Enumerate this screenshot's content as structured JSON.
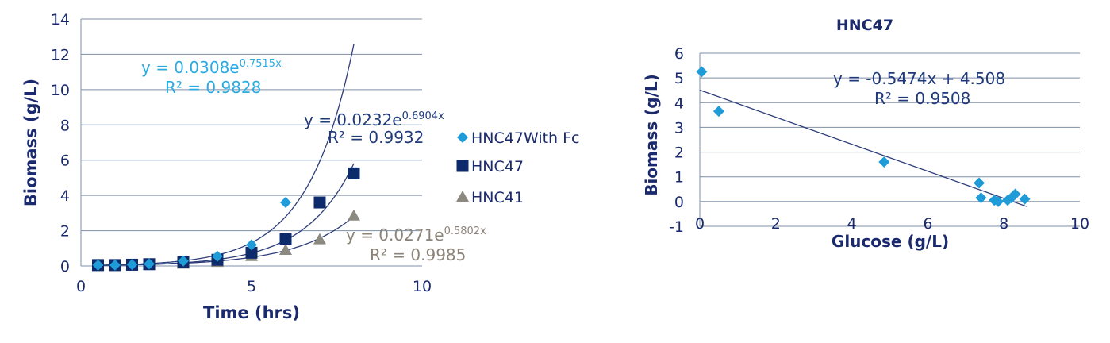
{
  "chart_data": [
    {
      "type": "scatter",
      "title": "",
      "xlabel": "Time (hrs)",
      "ylabel": "Biomass (g/L)",
      "xlim": [
        0,
        10
      ],
      "ylim": [
        0,
        14
      ],
      "x_ticks": [
        "0",
        "5",
        "10"
      ],
      "y_ticks": [
        "0",
        "2",
        "4",
        "6",
        "8",
        "10",
        "12",
        "14"
      ],
      "grid": "horizontal",
      "legend": "right",
      "series": [
        {
          "name": "HNC47With Fc",
          "marker": "diamond",
          "color": "#1f9bd8",
          "x": [
            0.5,
            1,
            1.5,
            2,
            3,
            4,
            5,
            6
          ],
          "y": [
            0.05,
            0.05,
            0.08,
            0.12,
            0.28,
            0.55,
            1.2,
            3.6
          ],
          "trendline": {
            "a": 0.0308,
            "b": 0.7515,
            "x_end": 8.0,
            "equation": "y = 0.0308e",
            "exponent": "0.7515x",
            "r2": "R² = 0.9828",
            "label_color": "#29abe2"
          }
        },
        {
          "name": "HNC47",
          "marker": "square",
          "color": "#0d2a6b",
          "x": [
            0.5,
            1,
            1.5,
            2,
            3,
            4,
            5,
            6,
            7,
            8
          ],
          "y": [
            0.05,
            0.05,
            0.07,
            0.1,
            0.22,
            0.35,
            0.75,
            1.55,
            3.6,
            5.25
          ],
          "trendline": {
            "a": 0.0232,
            "b": 0.6904,
            "x_end": 8.0,
            "equation": "y = 0.0232e",
            "exponent": "0.6904x",
            "r2": "R² = 0.9932",
            "label_color": "#1f3a7a"
          }
        },
        {
          "name": "HNC41",
          "marker": "triangle",
          "color": "#8c8a80",
          "x": [
            0.5,
            1,
            1.5,
            2,
            3,
            4,
            5,
            6,
            7,
            8
          ],
          "y": [
            0.03,
            0.03,
            0.05,
            0.06,
            0.12,
            0.22,
            0.55,
            0.9,
            1.5,
            2.85
          ],
          "trendline": {
            "a": 0.0271,
            "b": 0.5802,
            "x_end": 8.0,
            "equation": "y = 0.0271e",
            "exponent": "0.5802x",
            "r2": "R² = 0.9985",
            "label_color": "#8c8478"
          }
        }
      ]
    },
    {
      "type": "scatter",
      "title": "HNC47",
      "xlabel": "Glucose (g/L)",
      "ylabel": "Biomass (g/L)",
      "xlim": [
        0,
        10
      ],
      "ylim": [
        -1,
        6
      ],
      "x_ticks": [
        "0",
        "2",
        "4",
        "6",
        "8",
        "10"
      ],
      "y_ticks": [
        "-1",
        "0",
        "1",
        "2",
        "3",
        "4",
        "5",
        "6"
      ],
      "grid": "horizontal",
      "legend": "none",
      "series": [
        {
          "marker": "diamond",
          "color": "#1f9bd8",
          "x": [
            0.05,
            0.5,
            4.85,
            7.35,
            7.4,
            7.75,
            7.85,
            8.1,
            8.2,
            8.3,
            8.55
          ],
          "y": [
            5.25,
            3.65,
            1.6,
            0.75,
            0.15,
            0.05,
            0.0,
            0.05,
            0.15,
            0.3,
            0.1
          ],
          "trendline": {
            "slope": -0.5474,
            "intercept": 4.508,
            "x_start": 0.0,
            "x_end": 8.6,
            "equation": "y = -0.5474x + 4.508",
            "r2": "R² = 0.9508",
            "label_color": "#1f3a7a"
          }
        }
      ]
    }
  ]
}
